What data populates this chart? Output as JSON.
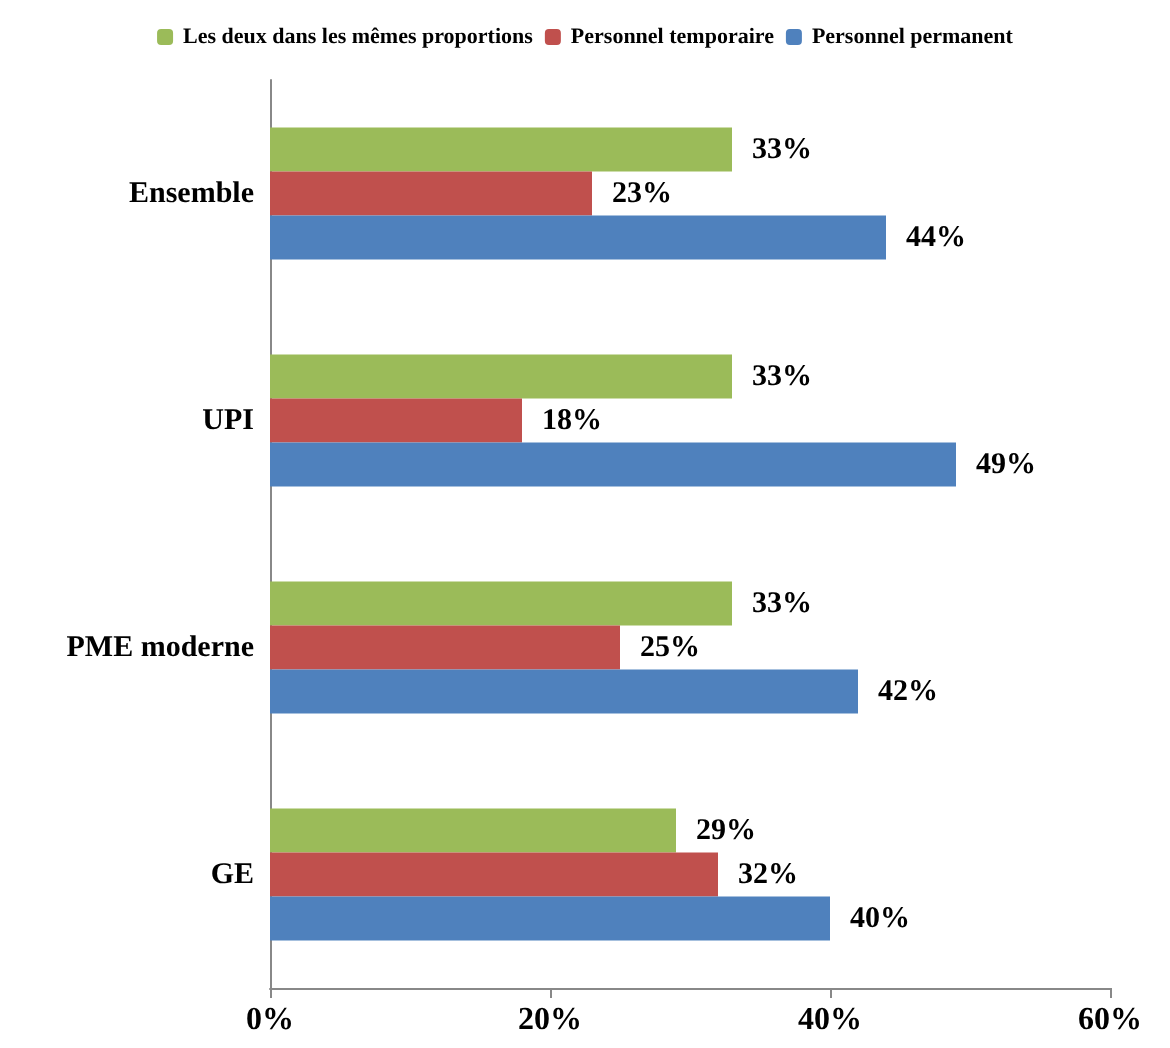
{
  "chart_data": {
    "type": "bar",
    "orientation": "horizontal",
    "categories": [
      "Ensemble",
      "UPI",
      "PME moderne",
      "GE"
    ],
    "series": [
      {
        "name": "Les deux dans les mêmes proportions",
        "color": "#9bbb59",
        "values": [
          33,
          33,
          33,
          29
        ],
        "value_labels": [
          "33%",
          "33%",
          "33%",
          "29%"
        ]
      },
      {
        "name": "Personnel temporaire",
        "color": "#c0504d",
        "values": [
          23,
          18,
          25,
          32
        ],
        "value_labels": [
          "23%",
          "18%",
          "25%",
          "32%"
        ]
      },
      {
        "name": "Personnel permanent",
        "color": "#4f81bd",
        "values": [
          44,
          49,
          42,
          40
        ],
        "value_labels": [
          "44%",
          "49%",
          "42%",
          "40%"
        ]
      }
    ],
    "xlim": [
      0,
      60
    ],
    "xticks": [
      {
        "value": 0,
        "label": "0%"
      },
      {
        "value": 20,
        "label": "20%"
      },
      {
        "value": 40,
        "label": "40%"
      },
      {
        "value": 60,
        "label": "60%"
      }
    ],
    "grid": false,
    "legend": "top"
  }
}
